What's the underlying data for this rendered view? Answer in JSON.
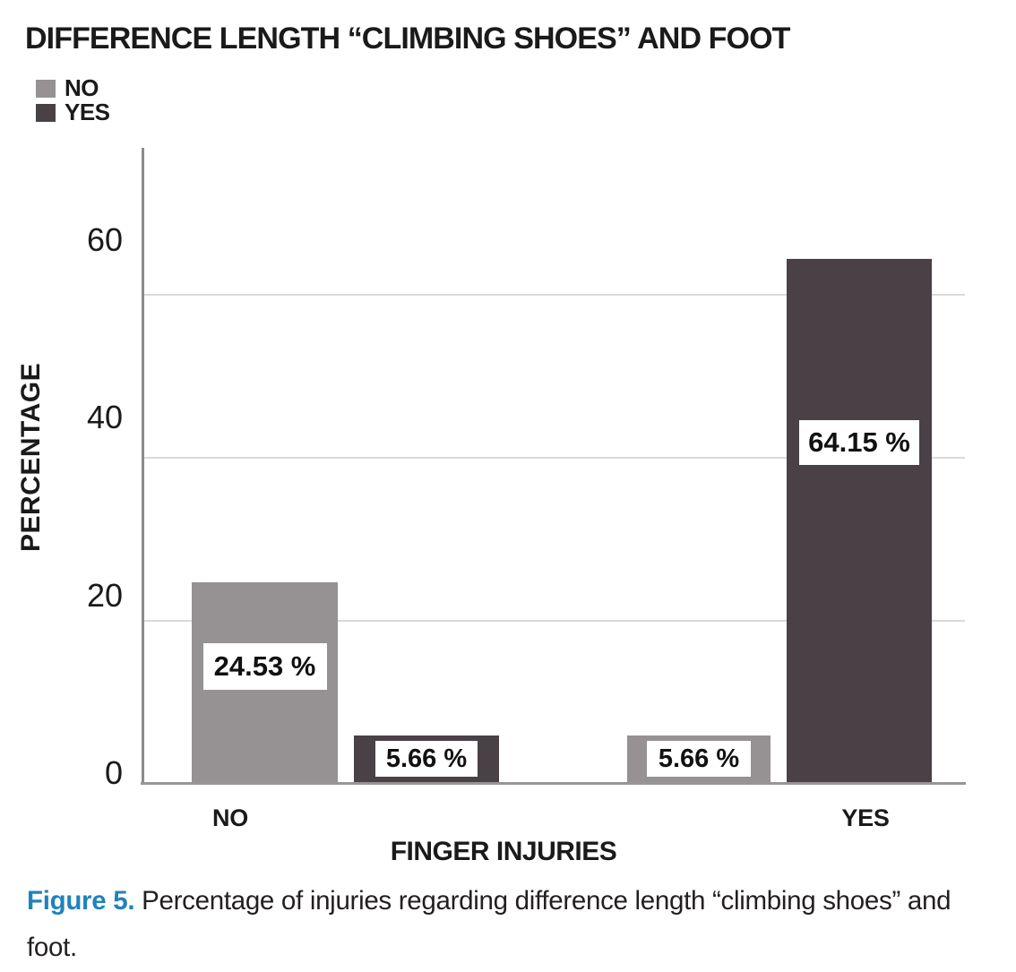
{
  "figure": {
    "title": "DIFFERENCE LENGTH “CLIMBING SHOES” AND FOOT",
    "caption_label": "Figure 5.",
    "caption_text": " Percentage of injuries regarding difference length “climbing shoes” and foot."
  },
  "chart_data": {
    "type": "bar",
    "title": "DIFFERENCE LENGTH “CLIMBING SHOES” AND FOOT",
    "xlabel": "FINGER INJURIES",
    "ylabel": "PERCENTAGE",
    "categories": [
      "NO",
      "YES"
    ],
    "series": [
      {
        "name": "NO",
        "color": "#969192",
        "values": [
          24.53,
          5.66
        ],
        "labels": [
          "24.53 %",
          "5.66 %"
        ]
      },
      {
        "name": "YES",
        "color": "#4a4147",
        "values": [
          5.66,
          64.15
        ],
        "labels": [
          "5.66 %",
          "64.15 %"
        ]
      }
    ],
    "yticks": [
      0,
      20,
      40,
      60
    ],
    "ylim": [
      0,
      72
    ],
    "grid": true,
    "legend_position": "top-left"
  },
  "colors": {
    "bar_no": "#969192",
    "bar_yes": "#4a4147",
    "gridline": "#d9d9d9",
    "axis": "#8e8b8c",
    "text": "#1a1a1a",
    "caption_accent": "#2082bc"
  }
}
